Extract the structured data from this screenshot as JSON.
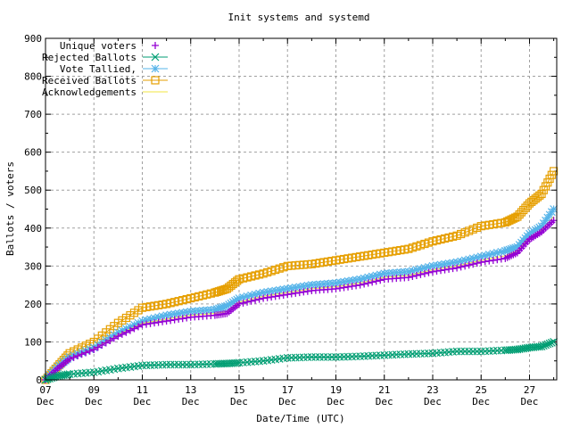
{
  "chart_data": {
    "type": "line",
    "title": "Init systems and systemd",
    "xlabel": "Date/Time (UTC)",
    "ylabel": "Ballots / voters",
    "ylim": [
      0,
      900
    ],
    "yticks": [
      0,
      100,
      200,
      300,
      400,
      500,
      600,
      700,
      800,
      900
    ],
    "xlim": [
      "Dec 07 00:00",
      "Dec 28 03:00"
    ],
    "xticks": [
      {
        "day": "07",
        "month": "Dec"
      },
      {
        "day": "09",
        "month": "Dec"
      },
      {
        "day": "11",
        "month": "Dec"
      },
      {
        "day": "13",
        "month": "Dec"
      },
      {
        "day": "15",
        "month": "Dec"
      },
      {
        "day": "17",
        "month": "Dec"
      },
      {
        "day": "19",
        "month": "Dec"
      },
      {
        "day": "21",
        "month": "Dec"
      },
      {
        "day": "23",
        "month": "Dec"
      },
      {
        "day": "25",
        "month": "Dec"
      },
      {
        "day": "27",
        "month": "Dec"
      }
    ],
    "grid": true,
    "legend_position": "top-left",
    "x": [
      "Dec 07 00:00",
      "Dec 07 12:00",
      "Dec 08 00:00",
      "Dec 09 00:00",
      "Dec 10 00:00",
      "Dec 11 00:00",
      "Dec 12 00:00",
      "Dec 13 00:00",
      "Dec 14 00:00",
      "Dec 14 12:00",
      "Dec 15 00:00",
      "Dec 16 00:00",
      "Dec 17 00:00",
      "Dec 18 00:00",
      "Dec 19 00:00",
      "Dec 20 00:00",
      "Dec 21 00:00",
      "Dec 22 00:00",
      "Dec 23 00:00",
      "Dec 24 00:00",
      "Dec 25 00:00",
      "Dec 26 00:00",
      "Dec 26 12:00",
      "Dec 27 00:00",
      "Dec 27 12:00",
      "Dec 28 00:00"
    ],
    "series": [
      {
        "name": "Unique voters",
        "color": "#9400d3",
        "marker": "plus",
        "values": [
          0,
          30,
          55,
          80,
          115,
          145,
          155,
          165,
          170,
          175,
          200,
          215,
          225,
          235,
          240,
          250,
          265,
          270,
          285,
          295,
          310,
          320,
          335,
          370,
          390,
          420
        ]
      },
      {
        "name": "Rejected Ballots",
        "color": "#009e73",
        "marker": "cross",
        "values": [
          0,
          10,
          15,
          20,
          30,
          38,
          40,
          40,
          42,
          43,
          45,
          50,
          58,
          60,
          60,
          62,
          65,
          68,
          70,
          75,
          75,
          78,
          80,
          85,
          88,
          100
        ]
      },
      {
        "name": "Vote Tallied,",
        "color": "#56b4e9",
        "marker": "star",
        "values": [
          0,
          33,
          60,
          85,
          125,
          155,
          170,
          180,
          185,
          195,
          215,
          230,
          240,
          250,
          255,
          265,
          280,
          285,
          300,
          310,
          325,
          340,
          350,
          385,
          405,
          450
        ]
      },
      {
        "name": "Received Ballots",
        "color": "#e69f00",
        "marker": "box",
        "values": [
          0,
          35,
          70,
          100,
          150,
          190,
          200,
          215,
          230,
          240,
          265,
          280,
          300,
          305,
          315,
          325,
          335,
          345,
          365,
          380,
          405,
          415,
          430,
          465,
          490,
          550
        ]
      },
      {
        "name": "Acknowledgements",
        "color": "#f0e442",
        "marker": "none",
        "values": [
          0,
          31,
          57,
          82,
          119,
          149,
          160,
          170,
          175,
          180,
          205,
          220,
          230,
          240,
          245,
          255,
          270,
          275,
          290,
          300,
          315,
          327,
          340,
          375,
          395,
          430
        ]
      }
    ]
  }
}
